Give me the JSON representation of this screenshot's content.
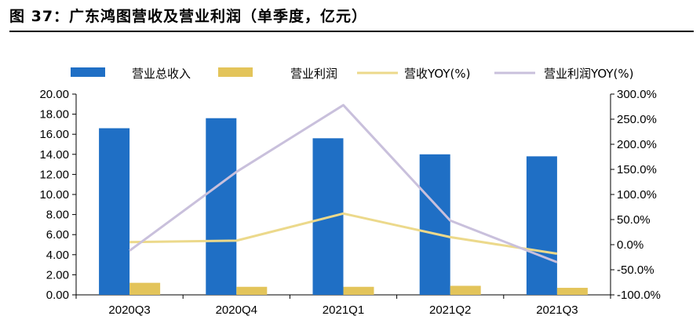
{
  "figure": {
    "title": "图 37：广东鸿图营收及营业利润（单季度，亿元）"
  },
  "chart_data": {
    "type": "bar",
    "categories": [
      "2020Q3",
      "2020Q4",
      "2021Q1",
      "2021Q2",
      "2021Q3"
    ],
    "series": [
      {
        "name": "营业总收入",
        "kind": "bar",
        "axis": "left",
        "color": "#1f6fc5",
        "values": [
          16.6,
          17.6,
          15.6,
          14.0,
          13.8
        ]
      },
      {
        "name": "营业利润",
        "kind": "bar",
        "axis": "left",
        "color": "#e3c45a",
        "values": [
          1.2,
          0.8,
          0.8,
          0.9,
          0.7
        ]
      },
      {
        "name": "营收YOY(%)",
        "kind": "line",
        "axis": "right",
        "color": "#ecd98b",
        "values": [
          5.0,
          8.0,
          62.0,
          15.0,
          -18.0
        ]
      },
      {
        "name": "营业利润YOY(%)",
        "kind": "line",
        "axis": "right",
        "color": "#c9c0dc",
        "values": [
          -12.0,
          145.0,
          278.0,
          48.0,
          -35.0
        ]
      }
    ],
    "y_left": {
      "min": 0,
      "max": 20,
      "step": 2,
      "tick_format": "0.00"
    },
    "y_right": {
      "min": -100,
      "max": 300,
      "step": 50,
      "tick_suffix": "%",
      "tick_format": "0.0"
    },
    "legend_placement": "top",
    "grid": false
  }
}
